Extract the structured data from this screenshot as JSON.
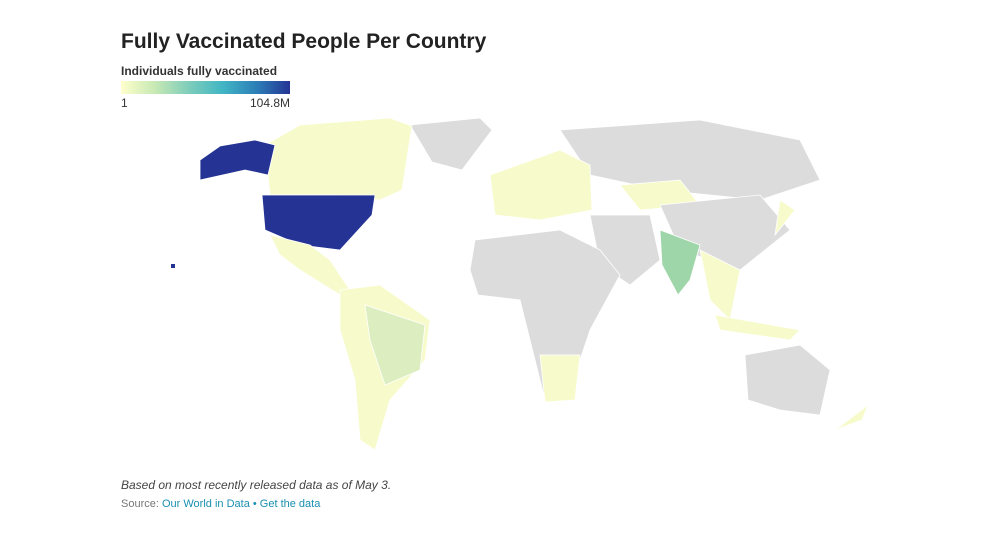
{
  "header": {
    "title": "Fully Vaccinated People Per Country"
  },
  "legend": {
    "title": "Individuals fully vaccinated",
    "min": {
      "value": 1,
      "label": "1"
    },
    "max": {
      "value": 104800000,
      "label": "104.8M"
    },
    "colors": [
      "#ffffcc",
      "#c7e9b4",
      "#7fcdbb",
      "#41b6c4",
      "#2c7fb8",
      "#253494"
    ]
  },
  "footer": {
    "note": "Based on most recently released data as of May 3.",
    "source_label": "Source:",
    "links": [
      "Our World in Data",
      "Get the data"
    ],
    "separator": "•"
  }
}
